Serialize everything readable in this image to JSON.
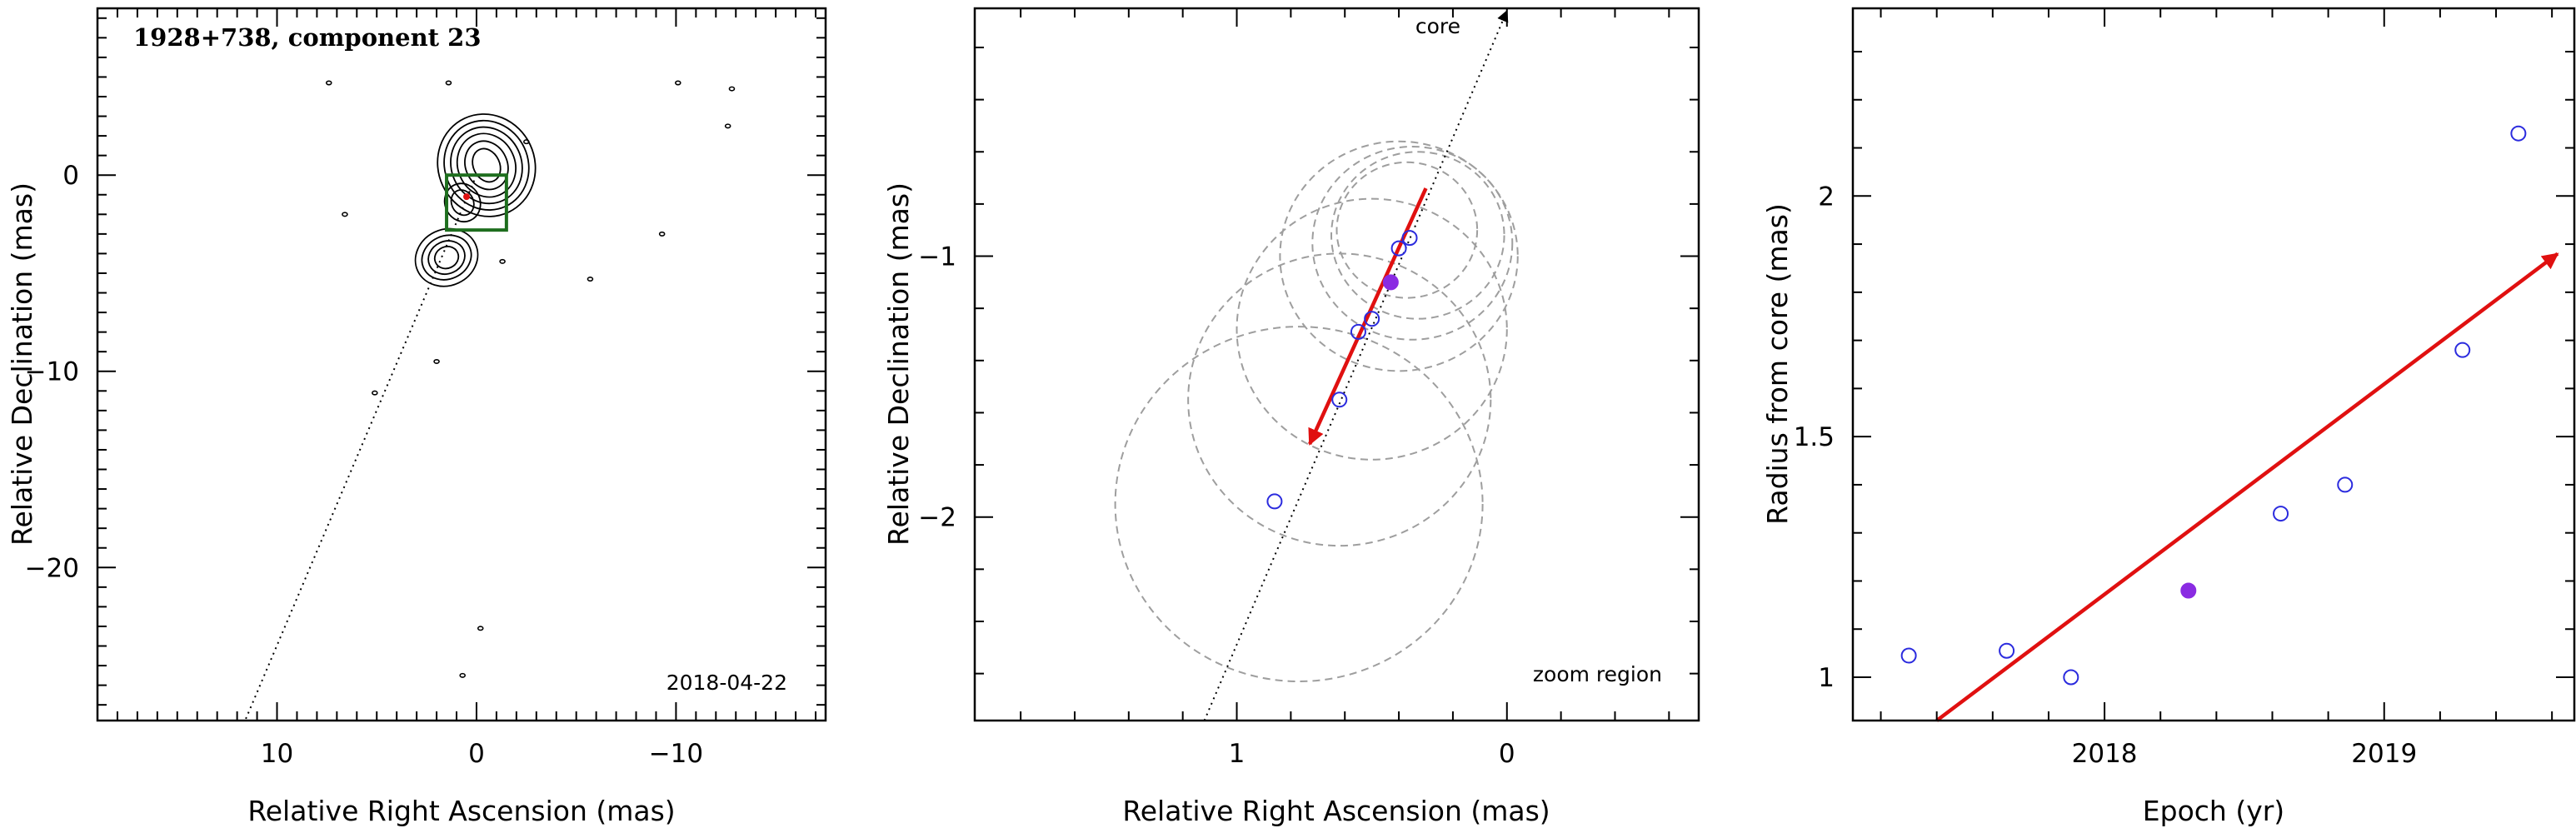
{
  "chart_data": [
    {
      "type": "scatter",
      "title": "1928+738, component 23",
      "date_label": "2018-04-22",
      "xlabel": "Relative Right Ascension (mas)",
      "ylabel": "Relative Declination (mas)",
      "xlim": [
        19,
        -17.5
      ],
      "ylim": [
        -27.8,
        8.5
      ],
      "xticks_major": [
        10,
        0,
        -10
      ],
      "xtick_labels": [
        "10",
        "0",
        "−10"
      ],
      "yticks_major": [
        0,
        -10,
        -20
      ],
      "ytick_labels": [
        "0",
        "−10",
        "−20"
      ],
      "zoom_box": {
        "ra": [
          -1.5,
          1.5
        ],
        "dec": [
          -2.8,
          0
        ]
      },
      "component_marker": {
        "ra": 0.5,
        "dec": -1.1
      },
      "jet_axis": {
        "from": [
          0,
          0
        ],
        "to": [
          11.6,
          -27.8
        ]
      },
      "noise_blobs": [
        [
          7.4,
          4.7
        ],
        [
          1.4,
          4.7
        ],
        [
          -10.1,
          4.7
        ],
        [
          -12.8,
          4.4
        ],
        [
          -12.6,
          2.5
        ],
        [
          -2.5,
          1.7
        ],
        [
          6.6,
          -2.0
        ],
        [
          -9.3,
          -3.0
        ],
        [
          -1.3,
          -4.4
        ],
        [
          -5.7,
          -5.3
        ],
        [
          2.0,
          -9.5
        ],
        [
          5.1,
          -11.1
        ],
        [
          -0.2,
          -23.1
        ],
        [
          0.7,
          -25.5
        ]
      ]
    },
    {
      "type": "scatter",
      "title": "",
      "region_label": "zoom region",
      "core_label": "core",
      "xlabel": "Relative Right Ascension (mas)",
      "ylabel": "Relative Declination (mas)",
      "xlim": [
        1.97,
        -0.71
      ],
      "ylim": [
        -2.78,
        -0.05
      ],
      "xticks_major": [
        1,
        0
      ],
      "xtick_labels": [
        "1",
        "0"
      ],
      "yticks_major": [
        -1,
        -2
      ],
      "ytick_labels": [
        "−1",
        "−2"
      ],
      "points_open": [
        [
          0.86,
          -1.94
        ],
        [
          0.62,
          -1.55
        ],
        [
          0.55,
          -1.29
        ],
        [
          0.5,
          -1.24
        ],
        [
          0.4,
          -0.97
        ],
        [
          0.36,
          -0.93
        ]
      ],
      "points_filled": [
        [
          0.43,
          -1.1
        ]
      ],
      "circles": [
        {
          "ra": 0.77,
          "dec": -1.95,
          "r": 0.68
        },
        {
          "ra": 0.62,
          "dec": -1.55,
          "r": 0.56
        },
        {
          "ra": 0.5,
          "dec": -1.28,
          "r": 0.5
        },
        {
          "ra": 0.4,
          "dec": -1.0,
          "r": 0.44
        },
        {
          "ra": 0.35,
          "dec": -0.95,
          "r": 0.37
        },
        {
          "ra": 0.33,
          "dec": -0.92,
          "r": 0.32
        },
        {
          "ra": 0.37,
          "dec": -0.9,
          "r": 0.26
        }
      ],
      "velocity_arrow": {
        "from": [
          0.3,
          -0.74
        ],
        "to": [
          0.73,
          -1.72
        ]
      },
      "jet_axis": {
        "from": [
          1.12,
          -2.78
        ],
        "to": [
          0.0,
          -0.06
        ]
      }
    },
    {
      "type": "scatter",
      "title": "",
      "xlabel": "Epoch (yr)",
      "ylabel": "Radius from core (mas)",
      "xlim": [
        2017.1,
        2019.68
      ],
      "ylim": [
        0.91,
        2.39
      ],
      "xticks_major": [
        2018,
        2019
      ],
      "xtick_labels": [
        "2018",
        "2019"
      ],
      "yticks_major": [
        1,
        1.5,
        2
      ],
      "ytick_labels": [
        "1",
        "1.5",
        "2"
      ],
      "points_open": [
        [
          2017.3,
          1.045
        ],
        [
          2017.65,
          1.055
        ],
        [
          2017.88,
          1.0
        ],
        [
          2018.63,
          1.34
        ],
        [
          2018.86,
          1.4
        ],
        [
          2019.28,
          1.68
        ],
        [
          2019.48,
          2.13
        ]
      ],
      "points_filled": [
        [
          2018.3,
          1.18
        ]
      ],
      "trend_arrow": {
        "from": [
          2017.4,
          0.91
        ],
        "to": [
          2019.62,
          1.88
        ]
      }
    }
  ],
  "colors": {
    "axis": "#000000",
    "open_point": "#2b2bde",
    "filled_point": "#8a2be2",
    "arrow": "#e01010",
    "circle": "#9e9e9e",
    "box": "#1e6e1e"
  }
}
